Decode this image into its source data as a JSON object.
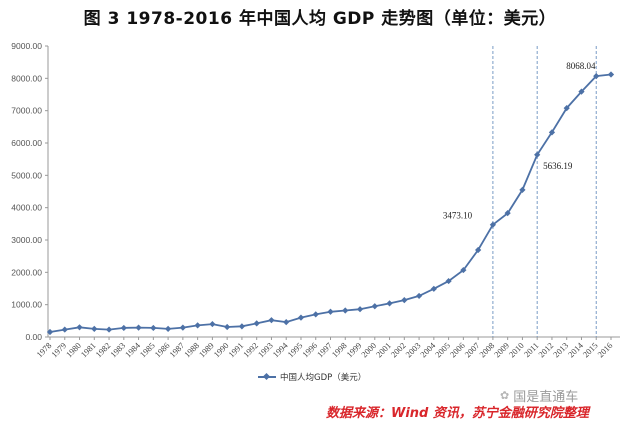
{
  "title": "图 3 1978-2016 年中国人均 GDP 走势图（单位：美元）",
  "legend": {
    "label": "中国人均GDP（美元）",
    "color": "#4d71a6"
  },
  "source": "数据来源：Wind 资讯，苏宁金融研究院整理",
  "watermark": {
    "icon": "wechat-icon",
    "text": "国是直通车"
  },
  "chart_data": {
    "type": "line",
    "title": "图 3 1978-2016 年中国人均 GDP 走势图（单位：美元）",
    "xlabel": "",
    "ylabel": "",
    "ylim": [
      0,
      9000
    ],
    "yticks": [
      "0.00",
      "1000.00",
      "2000.00",
      "3000.00",
      "4000.00",
      "5000.00",
      "6000.00",
      "7000.00",
      "8000.00",
      "9000.00"
    ],
    "grid": false,
    "legend_position": "bottom",
    "categories": [
      "1978",
      "1979",
      "1980",
      "1981",
      "1982",
      "1983",
      "1984",
      "1985",
      "1986",
      "1987",
      "1988",
      "1989",
      "1990",
      "1991",
      "1992",
      "1993",
      "1994",
      "1995",
      "1996",
      "1997",
      "1998",
      "1999",
      "2000",
      "2001",
      "2002",
      "2003",
      "2004",
      "2005",
      "2006",
      "2007",
      "2008",
      "2009",
      "2010",
      "2011",
      "2012",
      "2013",
      "2014",
      "2015",
      "2016"
    ],
    "series": [
      {
        "name": "中国人均GDP（美元）",
        "values": [
          156,
          230,
          300,
          250,
          230,
          280,
          290,
          280,
          250,
          290,
          360,
          400,
          310,
          330,
          420,
          520,
          460,
          600,
          700,
          780,
          820,
          860,
          950,
          1040,
          1140,
          1270,
          1490,
          1730,
          2070,
          2690,
          3473.1,
          3830,
          4550,
          5636.19,
          6330,
          7080,
          7590,
          8068.04,
          8120
        ]
      }
    ],
    "annotations": [
      {
        "x": "2008",
        "label": "3473.10",
        "vline": true
      },
      {
        "x": "2011",
        "label": "5636.19",
        "vline": true
      },
      {
        "x": "2015",
        "label": "8068.04",
        "vline": true
      }
    ]
  }
}
